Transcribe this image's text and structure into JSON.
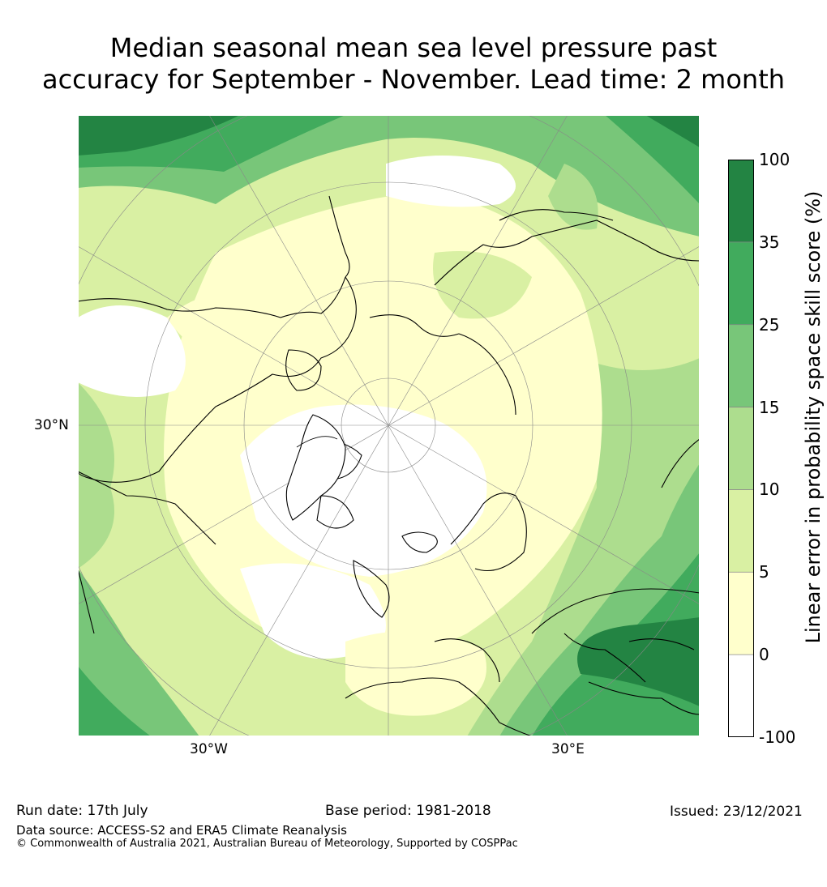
{
  "title": {
    "line1": "Median seasonal mean sea level pressure past",
    "line2": "accuracy for September - November. Lead time: 2 month"
  },
  "map": {
    "projection": "north-polar-stereographic",
    "lat_labels": [
      "30°N"
    ],
    "lon_labels": [
      "30°W",
      "30°E"
    ]
  },
  "colorbar": {
    "label": "Linear error in probability space skill score (%)",
    "ticks": [
      "100",
      "35",
      "25",
      "15",
      "10",
      "5",
      "0",
      "-100"
    ],
    "bins": [
      {
        "range": [
          -100,
          0
        ],
        "color": "#ffffff"
      },
      {
        "range": [
          0,
          5
        ],
        "color": "#ffffcc"
      },
      {
        "range": [
          5,
          10
        ],
        "color": "#d9f0a3"
      },
      {
        "range": [
          10,
          15
        ],
        "color": "#addd8e"
      },
      {
        "range": [
          15,
          25
        ],
        "color": "#78c679"
      },
      {
        "range": [
          25,
          35
        ],
        "color": "#41ab5d"
      },
      {
        "range": [
          35,
          100
        ],
        "color": "#238443"
      }
    ]
  },
  "footer": {
    "run_date": "Run date: 17th July",
    "base_period": "Base period: 1981-2018",
    "issued": "Issued: 23/12/2021",
    "data_source": "Data source: ACCESS-S2 and ERA5 Climate Reanalysis",
    "copyright": "© Commonwealth of Australia 2021, Australian Bureau of Meteorology, Supported by COSPPac"
  }
}
